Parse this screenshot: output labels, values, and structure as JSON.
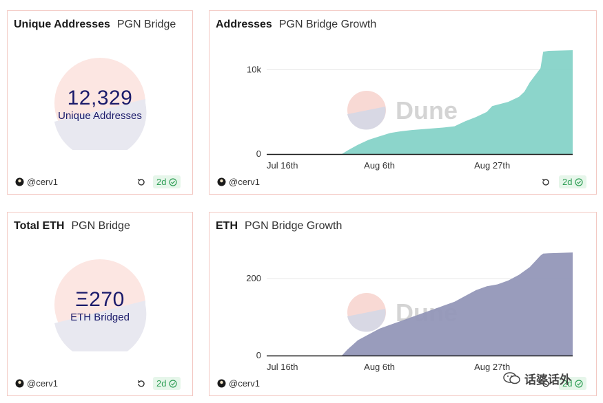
{
  "panels": {
    "unique_addresses": {
      "title": "Unique Addresses",
      "subtitle": "PGN Bridge",
      "value": "12,329",
      "label": "Unique Addresses",
      "author": "@cerv1",
      "age": "2d"
    },
    "total_eth": {
      "title": "Total ETH",
      "subtitle": "PGN Bridge",
      "value": "Ξ270",
      "label": "ETH Bridged",
      "author": "@cerv1",
      "age": "2d"
    },
    "addresses_growth": {
      "title": "Addresses",
      "subtitle": "PGN Bridge Growth",
      "author": "@cerv1",
      "age": "2d"
    },
    "eth_growth": {
      "title": "ETH",
      "subtitle": "PGN Bridge Growth",
      "author": "@cerv1",
      "age": "2d"
    }
  },
  "watermark": {
    "text": "Dune"
  },
  "footer_watermark": "话婆话外",
  "colors": {
    "addresses_fill": "#86d3c8",
    "eth_fill": "#9497b8",
    "counter_top": "#fce6e2",
    "counter_bottom": "#e8e8f0",
    "number_text": "#1b1b6b",
    "border": "#f3c8c2",
    "badge_bg": "#e6f6ea",
    "badge_text": "#2e9e55"
  },
  "chart_data": [
    {
      "type": "area",
      "title": "Addresses",
      "subtitle": "PGN Bridge Growth",
      "x_ticks": [
        "Jul 16th",
        "Aug 6th",
        "Aug 27th"
      ],
      "y_ticks": [
        "0",
        "10k"
      ],
      "y_tick_values": [
        0,
        10000
      ],
      "ylim": [
        0,
        12329
      ],
      "x_range_days": [
        0,
        57
      ],
      "x_tick_days": [
        0,
        21,
        42
      ],
      "series": [
        {
          "name": "Addresses",
          "x_days": [
            0,
            14,
            15,
            17,
            19,
            21,
            23,
            25,
            27,
            29,
            31,
            33,
            35,
            36,
            37,
            39,
            41,
            42,
            45,
            47,
            48,
            49,
            51,
            51.5,
            52.5,
            57
          ],
          "values": [
            0,
            0,
            400,
            1100,
            1700,
            2100,
            2500,
            2700,
            2850,
            2950,
            3050,
            3150,
            3300,
            3600,
            3900,
            4400,
            5000,
            5700,
            6200,
            6800,
            7400,
            8500,
            10200,
            12150,
            12250,
            12329
          ]
        }
      ]
    },
    {
      "type": "area",
      "title": "ETH",
      "subtitle": "PGN Bridge Growth",
      "x_ticks": [
        "Jul 16th",
        "Aug 6th",
        "Aug 27th"
      ],
      "y_ticks": [
        "0",
        "200"
      ],
      "y_tick_values": [
        0,
        200
      ],
      "ylim": [
        0,
        270
      ],
      "x_range_days": [
        0,
        57
      ],
      "x_tick_days": [
        0,
        21,
        42
      ],
      "series": [
        {
          "name": "ETH",
          "x_days": [
            0,
            14,
            15,
            17,
            19,
            21,
            23,
            25,
            27,
            29,
            31,
            33,
            35,
            37,
            39,
            41,
            43,
            45,
            47,
            49,
            51,
            51.5,
            52.5,
            57
          ],
          "values": [
            0,
            0,
            15,
            40,
            55,
            70,
            80,
            90,
            100,
            110,
            120,
            130,
            140,
            155,
            170,
            180,
            185,
            195,
            210,
            230,
            260,
            265,
            266,
            268
          ]
        }
      ]
    }
  ]
}
